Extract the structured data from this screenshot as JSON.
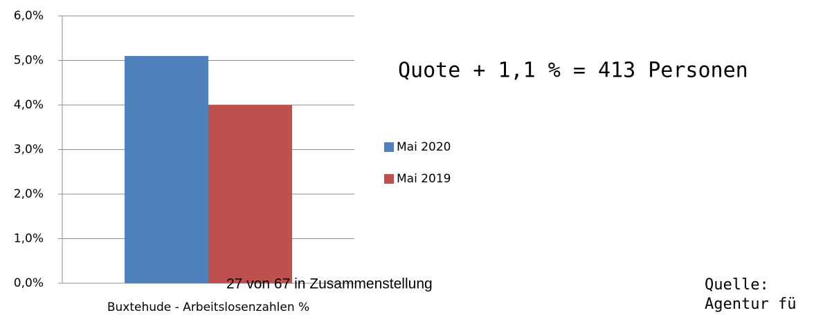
{
  "chart_data": {
    "type": "bar",
    "categories": [
      "Buxtehude - Arbeitslosenzahlen %"
    ],
    "series": [
      {
        "name": "Mai 2020",
        "color": "#4f81bd",
        "values": [
          5.1
        ]
      },
      {
        "name": "Mai 2019",
        "color": "#c0504d",
        "values": [
          4.0
        ]
      }
    ],
    "ylim": [
      0,
      6
    ],
    "yticks": [
      {
        "value": 0,
        "label": "0,0%"
      },
      {
        "value": 1,
        "label": "1,0%"
      },
      {
        "value": 2,
        "label": "2,0%"
      },
      {
        "value": 3,
        "label": "3,0%"
      },
      {
        "value": 4,
        "label": "4,0%"
      },
      {
        "value": 5,
        "label": "5,0%"
      },
      {
        "value": 6,
        "label": "6,0%"
      }
    ],
    "grid": true,
    "legend": "right",
    "annotations": [
      "Quote + 1,1 % = 413 Personen",
      "27 von 67 in Zusammenstellung",
      "Quelle:",
      "Agentur fü"
    ]
  }
}
